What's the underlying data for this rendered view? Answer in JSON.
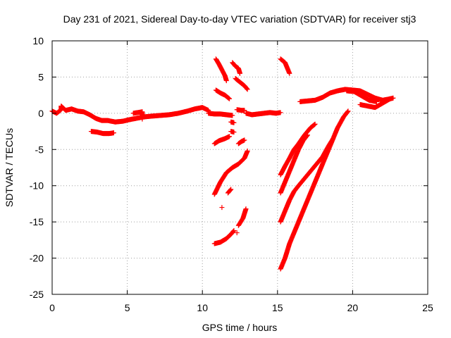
{
  "chart_data": {
    "type": "scatter",
    "title": "Day 231 of 2021, Sidereal Day-to-day VTEC variation (SDTVAR) for receiver stj3",
    "xlabel": "GPS time / hours",
    "ylabel": "SDTVAR / TECUs",
    "xlim": [
      0,
      25
    ],
    "ylim": [
      -25,
      10
    ],
    "xticks": [
      0,
      5,
      10,
      15,
      20,
      25
    ],
    "yticks": [
      -25,
      -20,
      -15,
      -10,
      -5,
      0,
      5,
      10
    ],
    "grid": true,
    "legend": "none",
    "marker": "plus",
    "series_color": "#ff0000",
    "series": [
      {
        "points": [
          [
            0.0,
            0.3
          ],
          [
            0.3,
            0.0
          ],
          [
            0.6,
            0.5
          ],
          [
            0.6,
            1.0
          ],
          [
            0.9,
            0.4
          ],
          [
            1.3,
            0.6
          ],
          [
            1.7,
            0.3
          ],
          [
            2.1,
            0.2
          ],
          [
            2.5,
            -0.2
          ],
          [
            2.9,
            -0.7
          ],
          [
            3.3,
            -1.0
          ],
          [
            3.7,
            -1.0
          ],
          [
            4.2,
            -1.2
          ],
          [
            4.7,
            -1.1
          ],
          [
            5.1,
            -0.9
          ],
          [
            5.6,
            -0.7
          ],
          [
            6.1,
            -0.5
          ],
          [
            6.6,
            -0.4
          ],
          [
            7.2,
            -0.3
          ],
          [
            7.8,
            -0.2
          ],
          [
            8.4,
            0.0
          ],
          [
            9.0,
            0.3
          ],
          [
            9.5,
            0.6
          ],
          [
            10.0,
            0.8
          ],
          [
            10.4,
            0.4
          ]
        ]
      },
      {
        "points": [
          [
            5.4,
            0.0
          ],
          [
            5.7,
            0.1
          ],
          [
            6.0,
            0.2
          ],
          [
            6.0,
            -0.8
          ]
        ]
      },
      {
        "points": [
          [
            2.6,
            -2.5
          ],
          [
            3.0,
            -2.6
          ],
          [
            3.4,
            -2.8
          ],
          [
            3.8,
            -2.8
          ],
          [
            4.1,
            -2.7
          ]
        ]
      },
      {
        "points": [
          [
            10.4,
            0.0
          ],
          [
            10.8,
            -0.1
          ],
          [
            11.2,
            -0.1
          ],
          [
            11.6,
            -0.2
          ],
          [
            12.0,
            -0.3
          ]
        ]
      },
      {
        "points": [
          [
            10.9,
            7.5
          ],
          [
            11.1,
            6.8
          ],
          [
            11.3,
            6.0
          ],
          [
            11.5,
            5.2
          ],
          [
            11.6,
            4.5
          ]
        ]
      },
      {
        "points": [
          [
            10.9,
            3.2
          ],
          [
            11.2,
            2.8
          ],
          [
            11.5,
            2.5
          ],
          [
            11.8,
            2.0
          ]
        ]
      },
      {
        "points": [
          [
            10.8,
            -4.2
          ],
          [
            11.1,
            -3.8
          ],
          [
            11.5,
            -3.5
          ],
          [
            11.8,
            -3.2
          ]
        ]
      },
      {
        "points": [
          [
            12.0,
            7.0
          ],
          [
            12.2,
            6.5
          ],
          [
            12.4,
            6.2
          ],
          [
            12.5,
            5.5
          ]
        ]
      },
      {
        "points": [
          [
            12.2,
            4.8
          ],
          [
            12.5,
            4.3
          ],
          [
            12.8,
            3.8
          ],
          [
            13.0,
            3.3
          ]
        ]
      },
      {
        "points": [
          [
            12.3,
            0.5
          ],
          [
            12.6,
            0.4
          ],
          [
            12.8,
            0.4
          ]
        ]
      },
      {
        "points": [
          [
            11.9,
            -1.2
          ],
          [
            12.1,
            -1.3
          ]
        ]
      },
      {
        "points": [
          [
            11.9,
            -2.5
          ],
          [
            12.1,
            -2.6
          ]
        ]
      },
      {
        "points": [
          [
            12.4,
            -4.2
          ],
          [
            12.6,
            -3.9
          ],
          [
            12.8,
            -3.7
          ]
        ]
      },
      {
        "points": [
          [
            10.8,
            -11.2
          ],
          [
            11.2,
            -9.5
          ],
          [
            11.6,
            -8.2
          ],
          [
            12.0,
            -7.5
          ],
          [
            12.4,
            -7.0
          ],
          [
            12.8,
            -6.2
          ],
          [
            13.0,
            -5.2
          ]
        ]
      },
      {
        "points": [
          [
            11.3,
            -13.0
          ]
        ]
      },
      {
        "points": [
          [
            11.7,
            -11.0
          ],
          [
            11.9,
            -10.5
          ]
        ]
      },
      {
        "points": [
          [
            12.3,
            -16.5
          ]
        ]
      },
      {
        "points": [
          [
            12.4,
            -15.5
          ],
          [
            12.7,
            -14.5
          ],
          [
            12.9,
            -13.2
          ]
        ]
      },
      {
        "points": [
          [
            10.8,
            -18.0
          ],
          [
            11.2,
            -17.8
          ],
          [
            11.6,
            -17.3
          ],
          [
            11.9,
            -16.7
          ],
          [
            12.1,
            -16.2
          ]
        ]
      },
      {
        "points": [
          [
            12.9,
            0.0
          ],
          [
            13.3,
            -0.2
          ],
          [
            13.7,
            -0.1
          ],
          [
            14.1,
            0.0
          ],
          [
            14.5,
            0.1
          ],
          [
            14.9,
            0.0
          ],
          [
            15.2,
            0.1
          ]
        ]
      },
      {
        "points": [
          [
            15.2,
            7.5
          ],
          [
            15.5,
            7.0
          ],
          [
            15.7,
            6.0
          ],
          [
            15.8,
            5.5
          ]
        ]
      },
      {
        "points": [
          [
            15.2,
            -8.5
          ],
          [
            15.5,
            -7.3
          ],
          [
            15.8,
            -6.2
          ],
          [
            16.1,
            -5.0
          ],
          [
            16.4,
            -4.2
          ],
          [
            16.8,
            -3.0
          ],
          [
            17.2,
            -2.0
          ],
          [
            17.5,
            -1.5
          ]
        ]
      },
      {
        "points": [
          [
            15.2,
            -11.0
          ],
          [
            15.5,
            -9.5
          ],
          [
            15.8,
            -8.0
          ],
          [
            16.1,
            -6.5
          ],
          [
            16.4,
            -5.0
          ],
          [
            16.7,
            -3.8
          ],
          [
            17.0,
            -3.0
          ]
        ]
      },
      {
        "points": [
          [
            15.2,
            -15.0
          ],
          [
            15.5,
            -13.5
          ],
          [
            15.8,
            -12.0
          ],
          [
            16.1,
            -10.8
          ],
          [
            16.4,
            -10.0
          ],
          [
            16.8,
            -9.0
          ],
          [
            17.2,
            -8.0
          ],
          [
            17.6,
            -7.0
          ],
          [
            18.0,
            -6.0
          ],
          [
            18.4,
            -4.5
          ],
          [
            18.7,
            -3.5
          ]
        ]
      },
      {
        "points": [
          [
            15.2,
            -21.5
          ],
          [
            15.5,
            -20.0
          ],
          [
            15.8,
            -18.0
          ],
          [
            16.2,
            -16.0
          ],
          [
            16.6,
            -14.0
          ],
          [
            17.0,
            -12.0
          ],
          [
            17.4,
            -10.0
          ],
          [
            17.8,
            -8.0
          ],
          [
            18.2,
            -6.0
          ],
          [
            18.6,
            -4.0
          ],
          [
            19.0,
            -2.0
          ],
          [
            19.4,
            -0.5
          ],
          [
            19.7,
            0.3
          ]
        ]
      },
      {
        "points": [
          [
            16.5,
            1.6
          ],
          [
            17.0,
            1.7
          ],
          [
            17.5,
            1.8
          ],
          [
            18.0,
            2.2
          ],
          [
            18.5,
            2.8
          ],
          [
            19.0,
            3.1
          ],
          [
            19.5,
            3.3
          ],
          [
            20.0,
            3.2
          ],
          [
            20.5,
            3.1
          ],
          [
            21.0,
            2.6
          ],
          [
            21.5,
            2.1
          ],
          [
            22.0,
            1.8
          ],
          [
            22.5,
            2.0
          ]
        ]
      },
      {
        "points": [
          [
            19.6,
            3.1
          ],
          [
            20.1,
            3.0
          ],
          [
            20.6,
            2.4
          ],
          [
            21.1,
            1.8
          ],
          [
            21.6,
            1.6
          ]
        ]
      },
      {
        "points": [
          [
            20.5,
            1.2
          ],
          [
            21.0,
            1.0
          ],
          [
            21.5,
            0.8
          ],
          [
            22.0,
            1.4
          ],
          [
            22.5,
            2.0
          ],
          [
            22.7,
            2.1
          ]
        ]
      }
    ]
  }
}
